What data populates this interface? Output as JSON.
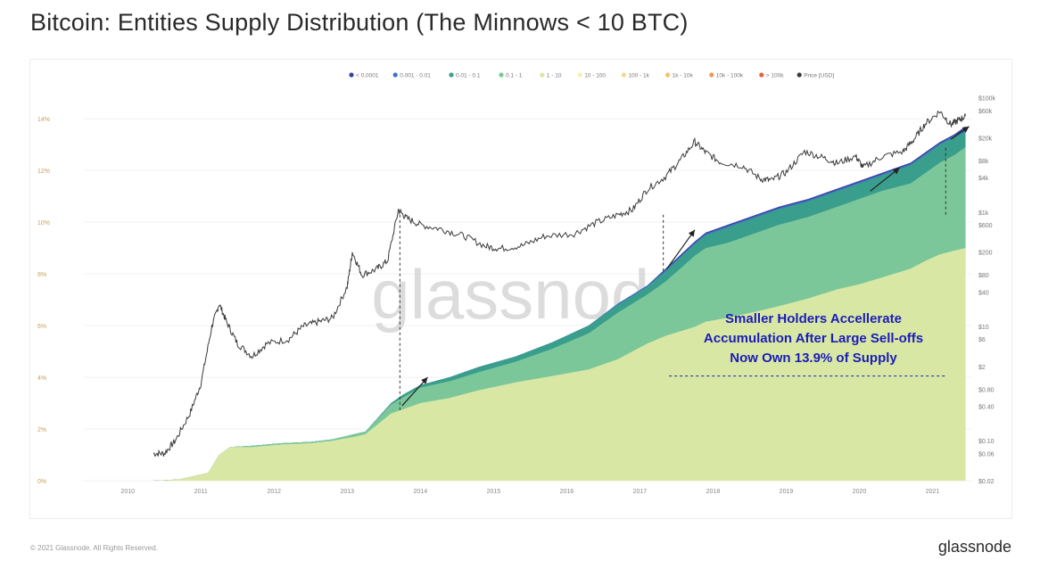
{
  "header": {
    "title": "Bitcoin: Entities Supply Distribution (The Minnows < 10 BTC)"
  },
  "footer": {
    "copyright": "© 2021 Glassnode. All Rights Reserved.",
    "brand": "glassnode"
  },
  "watermark": "glassnode",
  "colors": {
    "lt_0001": "#3b3f9e",
    "b_0001_001": "#3b74c2",
    "b_001_01": "#3a9e8c",
    "b_01_1": "#7cc79a",
    "b_1_10": "#d8e8a4",
    "b_10_100": "#f3f0b0",
    "b_100_1k": "#f5d98a",
    "b_1k_10k": "#f3c26b",
    "b_10k_100k": "#ee9b52",
    "gt_100k": "#e0653f",
    "price": "#3a3a3a",
    "annotation": "#1c1cb8"
  },
  "chart_data": {
    "type": "area",
    "title": "Bitcoin: Entities Supply Distribution (The Minnows < 10 BTC)",
    "legend_position": "top-right",
    "legend": [
      "< 0.0001",
      "0.001 - 0.01",
      "0.01 - 0.1",
      "0.1 - 1",
      "1 - 10",
      "10 - 100",
      "100 - 1k",
      "1k - 10k",
      "10k - 100k",
      "> 100k",
      "Price [USD]"
    ],
    "x_ticks": [
      "2010",
      "2011",
      "2012",
      "2013",
      "2014",
      "2015",
      "2016",
      "2017",
      "2018",
      "2019",
      "2020",
      "2021"
    ],
    "y_left_ticks": [
      "0%",
      "2%",
      "4%",
      "6%",
      "8%",
      "10%",
      "12%",
      "14%"
    ],
    "y_right_ticks": [
      "$100k",
      "$60k",
      "$20k",
      "$8k",
      "$4k",
      "$1k",
      "$600",
      "$200",
      "$80",
      "$40",
      "$10",
      "$6",
      "$2",
      "$0.80",
      "$0.40",
      "$0.10",
      "$0.06",
      "$0.02"
    ],
    "ylim_left": [
      0,
      14.9
    ],
    "ylim_right": [
      0.02,
      110000
    ],
    "yscale_right": "log",
    "x": [
      2010.55,
      2010.9,
      2011.3,
      2011.45,
      2011.6,
      2011.9,
      2012.3,
      2012.7,
      2013.0,
      2013.3,
      2013.45,
      2013.8,
      2013.95,
      2014.2,
      2014.6,
      2015.0,
      2015.5,
      2016.0,
      2016.5,
      2016.9,
      2017.3,
      2017.55,
      2017.95,
      2018.1,
      2018.4,
      2018.8,
      2019.1,
      2019.5,
      2019.9,
      2020.2,
      2020.5,
      2020.9,
      2021.1,
      2021.3,
      2021.5,
      2021.65
    ],
    "series": [
      {
        "name": "1 - 10",
        "values": [
          0.0,
          0.05,
          0.3,
          1.0,
          1.3,
          1.3,
          1.4,
          1.45,
          1.55,
          1.7,
          1.8,
          2.6,
          2.75,
          3.0,
          3.2,
          3.5,
          3.8,
          4.05,
          4.3,
          4.7,
          5.3,
          5.6,
          5.95,
          6.15,
          6.3,
          6.55,
          6.75,
          7.05,
          7.4,
          7.6,
          7.85,
          8.2,
          8.5,
          8.75,
          8.9,
          9.0
        ]
      },
      {
        "name": "0.1 - 1",
        "values": [
          0.0,
          0.05,
          0.3,
          1.0,
          1.3,
          1.35,
          1.45,
          1.5,
          1.6,
          1.8,
          1.9,
          2.95,
          3.2,
          3.6,
          3.85,
          4.2,
          4.6,
          5.1,
          5.7,
          6.5,
          7.2,
          7.7,
          8.7,
          9.0,
          9.2,
          9.6,
          9.9,
          10.2,
          10.6,
          10.9,
          11.2,
          11.5,
          11.9,
          12.3,
          12.6,
          12.9
        ]
      },
      {
        "name": "0.01 - 0.1",
        "values": [
          0.0,
          0.05,
          0.3,
          1.0,
          1.3,
          1.35,
          1.45,
          1.5,
          1.6,
          1.8,
          1.9,
          3.0,
          3.3,
          3.7,
          4.0,
          4.4,
          4.8,
          5.35,
          6.0,
          6.8,
          7.5,
          8.1,
          9.15,
          9.5,
          9.8,
          10.2,
          10.5,
          10.8,
          11.2,
          11.5,
          11.8,
          12.2,
          12.6,
          13.0,
          13.3,
          13.5
        ]
      },
      {
        "name": "0.001 - 0.01",
        "values": [
          0.0,
          0.05,
          0.3,
          1.0,
          1.3,
          1.35,
          1.45,
          1.5,
          1.6,
          1.8,
          1.9,
          3.0,
          3.3,
          3.7,
          4.0,
          4.4,
          4.8,
          5.35,
          6.0,
          6.85,
          7.55,
          8.15,
          9.2,
          9.55,
          9.85,
          10.25,
          10.55,
          10.85,
          11.25,
          11.55,
          11.85,
          12.25,
          12.65,
          13.05,
          13.35,
          13.6
        ]
      },
      {
        "name": "< 0.0001",
        "values": [
          0.0,
          0.05,
          0.3,
          1.0,
          1.3,
          1.35,
          1.45,
          1.5,
          1.6,
          1.8,
          1.9,
          3.0,
          3.3,
          3.7,
          4.0,
          4.4,
          4.8,
          5.35,
          6.0,
          6.85,
          7.55,
          8.2,
          9.25,
          9.6,
          9.9,
          10.3,
          10.6,
          10.9,
          11.3,
          11.6,
          11.9,
          12.3,
          12.7,
          13.1,
          13.4,
          13.7
        ]
      }
    ],
    "price": {
      "name": "Price [USD]",
      "x": [
        2010.55,
        2010.7,
        2010.85,
        2011.05,
        2011.2,
        2011.35,
        2011.45,
        2011.55,
        2011.7,
        2011.9,
        2012.1,
        2012.4,
        2012.6,
        2012.8,
        2013.0,
        2013.2,
        2013.27,
        2013.4,
        2013.6,
        2013.75,
        2013.9,
        2014.0,
        2014.2,
        2014.5,
        2014.8,
        2015.1,
        2015.3,
        2015.6,
        2015.9,
        2016.3,
        2016.6,
        2016.9,
        2017.1,
        2017.3,
        2017.55,
        2017.75,
        2017.95,
        2018.1,
        2018.3,
        2018.6,
        2018.85,
        2019.0,
        2019.2,
        2019.45,
        2019.7,
        2019.9,
        2020.15,
        2020.25,
        2020.5,
        2020.8,
        2020.95,
        2021.1,
        2021.3,
        2021.45,
        2021.55,
        2021.65
      ],
      "values": [
        0.06,
        0.06,
        0.1,
        0.3,
        1,
        10,
        25,
        12,
        5,
        3,
        5,
        6,
        10,
        12,
        14,
        50,
        200,
        80,
        100,
        140,
        1100,
        800,
        600,
        500,
        380,
        250,
        230,
        260,
        380,
        420,
        650,
        900,
        1100,
        2500,
        4200,
        8000,
        17000,
        11000,
        7500,
        6500,
        3800,
        3600,
        5000,
        11500,
        9000,
        7200,
        9500,
        6000,
        9300,
        11500,
        19000,
        35000,
        58000,
        34000,
        40000,
        48000
      ]
    },
    "annotations": [
      {
        "id": "callout_line1",
        "text": "Smaller Holders Accellerate"
      },
      {
        "id": "callout_line2",
        "text": "Accumulation After Large Sell-offs"
      },
      {
        "id": "callout_line3",
        "text": "Now Own 13.9% of Supply"
      }
    ]
  }
}
